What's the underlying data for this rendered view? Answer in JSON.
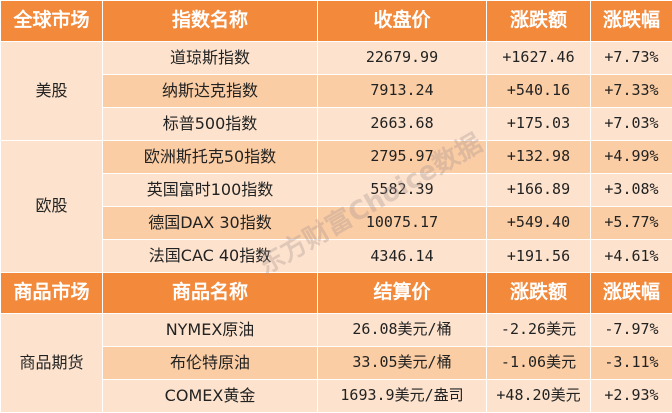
{
  "colors": {
    "header": "#f2893b",
    "row_light": "#fde3cd",
    "row_dark": "#fbcda4"
  },
  "sections": [
    {
      "headers": [
        "全球市场",
        "指数名称",
        "收盘价",
        "涨跌额",
        "涨跌幅"
      ],
      "groups": [
        {
          "label": "美股",
          "rows": [
            {
              "name": "道琼斯指数",
              "price": "22679.99",
              "change": "+1627.46",
              "pct": "+7.73%"
            },
            {
              "name": "纳斯达克指数",
              "price": "7913.24",
              "change": "+540.16",
              "pct": "+7.33%"
            },
            {
              "name": "标普500指数",
              "price": "2663.68",
              "change": "+175.03",
              "pct": "+7.03%"
            }
          ]
        },
        {
          "label": "欧股",
          "rows": [
            {
              "name": "欧洲斯托克50指数",
              "price": "2795.97",
              "change": "+132.98",
              "pct": "+4.99%"
            },
            {
              "name": "英国富时100指数",
              "price": "5582.39",
              "change": "+166.89",
              "pct": "+3.08%"
            },
            {
              "name": "德国DAX 30指数",
              "price": "10075.17",
              "change": "+549.40",
              "pct": "+5.77%"
            },
            {
              "name": "法国CAC 40指数",
              "price": "4346.14",
              "change": "+191.56",
              "pct": "+4.61%"
            }
          ]
        }
      ]
    },
    {
      "headers": [
        "商品市场",
        "商品名称",
        "结算价",
        "涨跌额",
        "涨跌幅"
      ],
      "groups": [
        {
          "label": "商品期货",
          "rows": [
            {
              "name": "NYMEX原油",
              "price": "26.08美元/桶",
              "change": "-2.26美元",
              "pct": "-7.97%"
            },
            {
              "name": "布伦特原油",
              "price": "33.05美元/桶",
              "change": "-1.06美元",
              "pct": "-3.11%"
            },
            {
              "name": "COMEX黄金",
              "price": "1693.9美元/盎司",
              "change": "+48.20美元",
              "pct": "+2.93%"
            }
          ]
        }
      ]
    }
  ],
  "watermark": "东方财富Choice数据"
}
